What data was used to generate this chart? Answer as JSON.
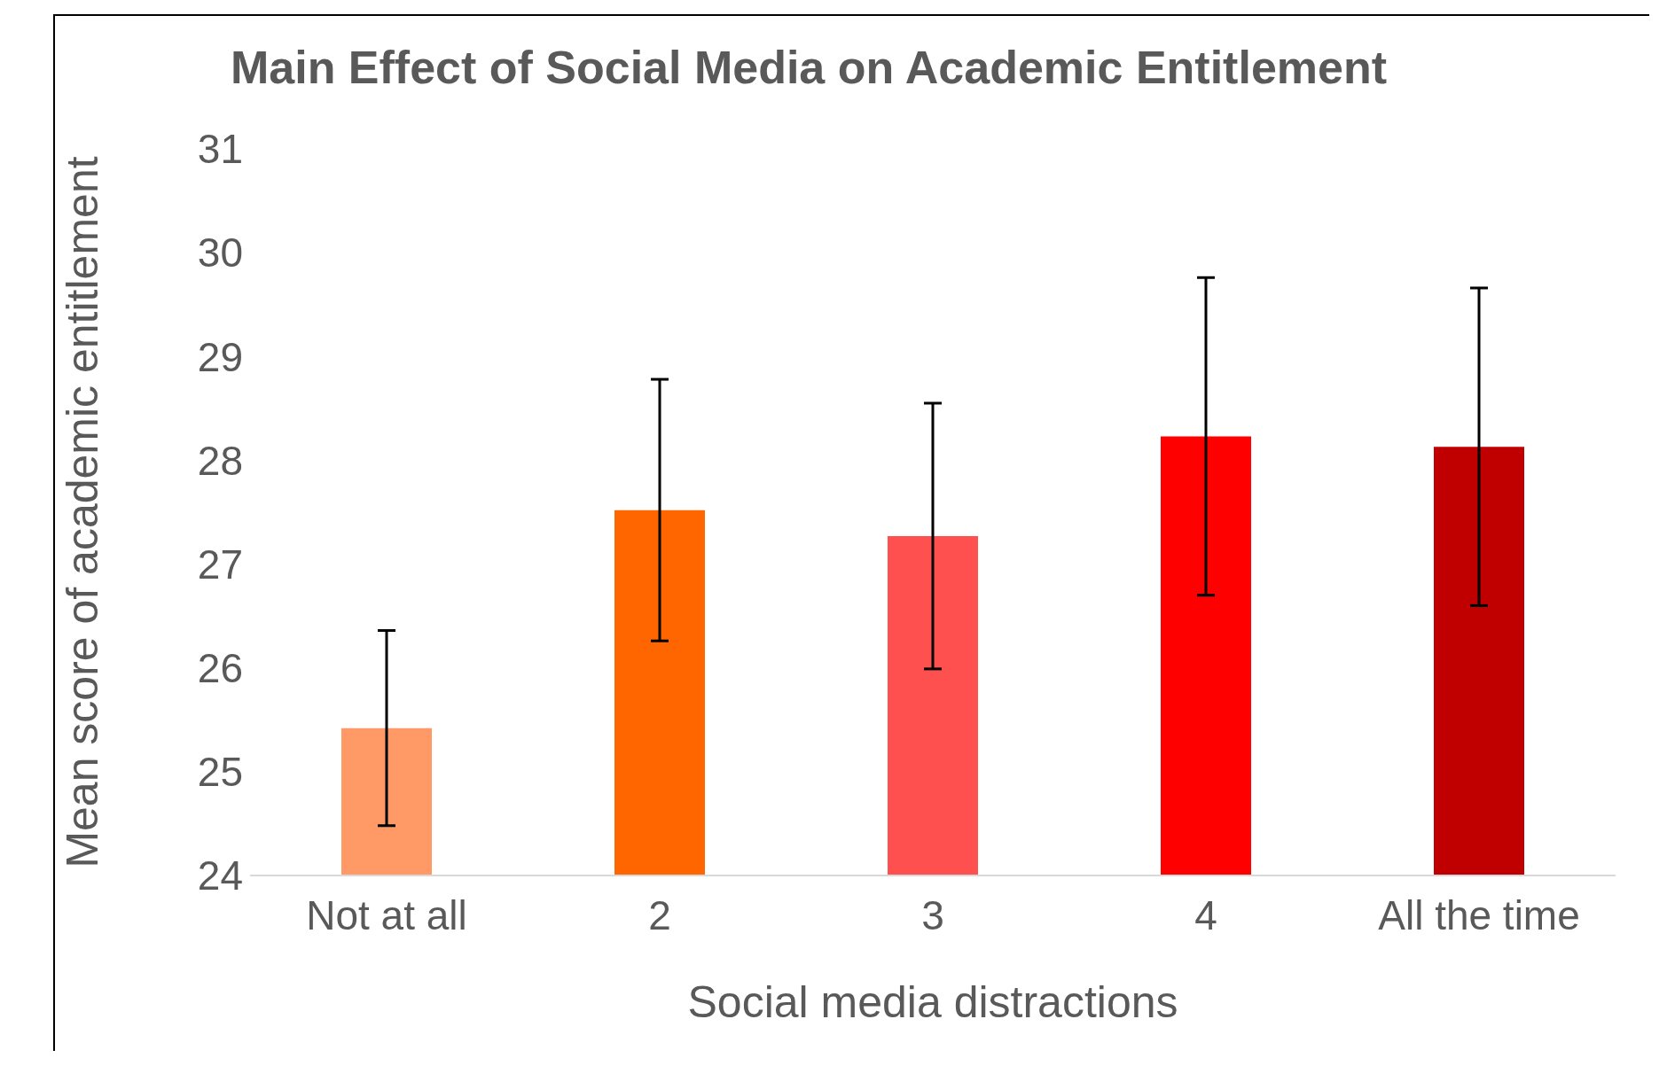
{
  "chart_data": {
    "type": "bar",
    "title": "Main Effect of Social Media on Academic Entitlement",
    "xlabel": "Social media distractions",
    "ylabel": "Mean score of academic entitlement",
    "categories": [
      "Not at all",
      "2",
      "3",
      "4",
      "All the time"
    ],
    "values": [
      25.42,
      27.52,
      27.27,
      28.23,
      28.13
    ],
    "errors": [
      0.94,
      1.26,
      1.28,
      1.53,
      1.53
    ],
    "colors": [
      "#ff9966",
      "#ff6600",
      "#ff5050",
      "#ff0000",
      "#c00000"
    ],
    "ylim": [
      24,
      31
    ],
    "yticks": [
      24,
      25,
      26,
      27,
      28,
      29,
      30,
      31
    ],
    "grid": false,
    "legend": false
  }
}
